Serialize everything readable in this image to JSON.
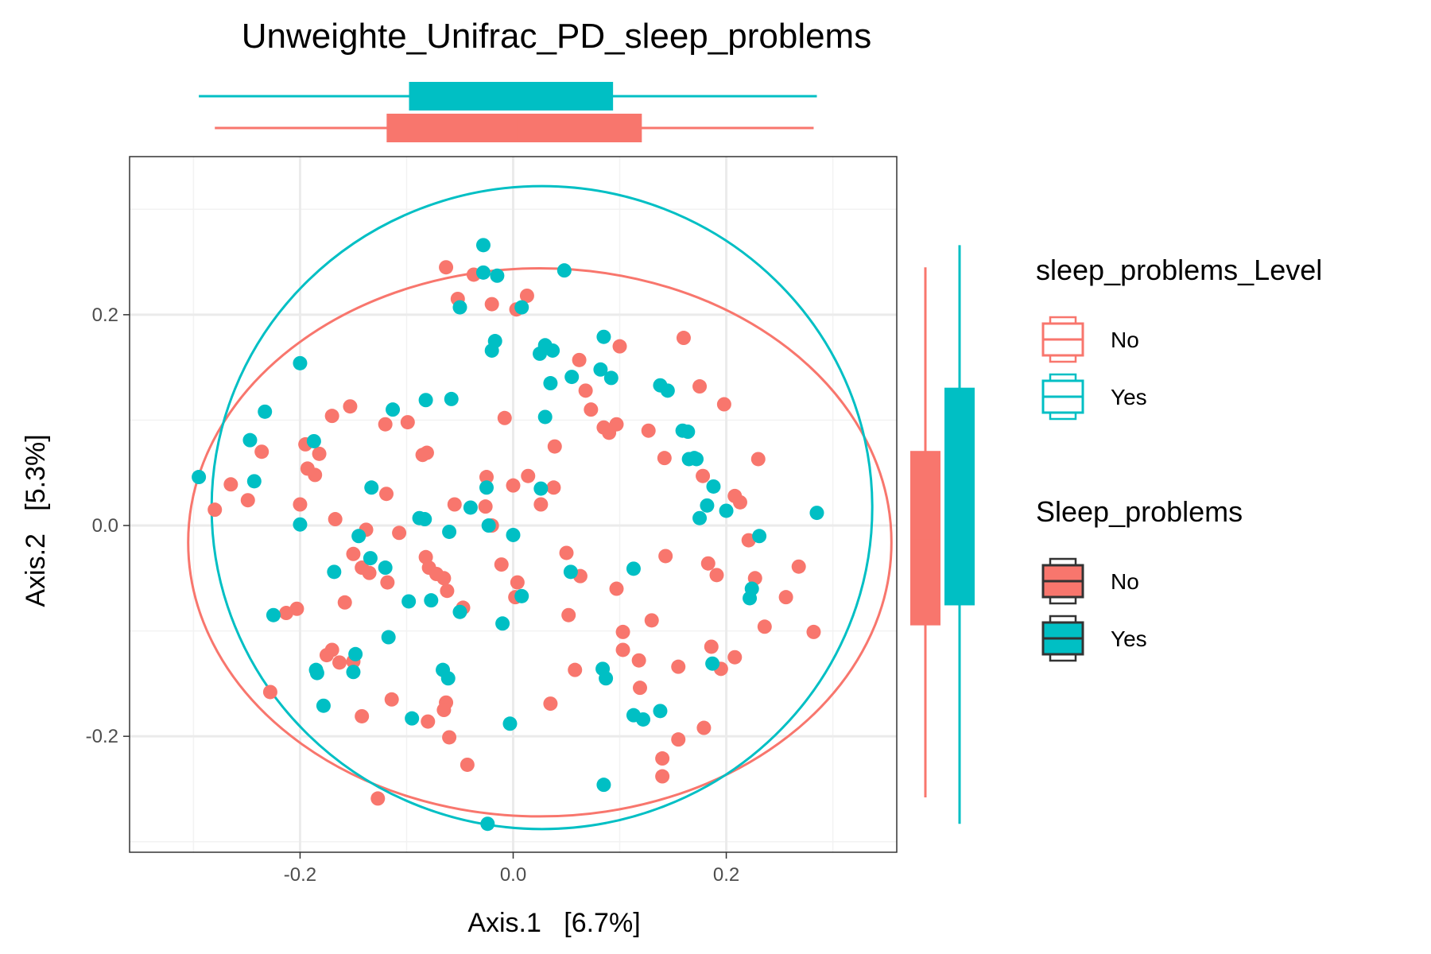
{
  "chart_data": {
    "type": "scatter",
    "title": "Unweighte_Unifrac_PD_sleep_problems",
    "xlabel": "Axis.1   [6.7%]",
    "ylabel": "Axis.2   [5.3%]",
    "xlim": [
      -0.36,
      0.36
    ],
    "ylim": [
      -0.31,
      0.35
    ],
    "x_ticks": [
      -0.2,
      0.0,
      0.2
    ],
    "y_ticks": [
      -0.2,
      0.0,
      0.2
    ],
    "x_tick_labels": [
      "-0.2",
      "0.0",
      "0.2"
    ],
    "y_tick_labels": [
      "-0.2",
      "0.0",
      "0.2"
    ],
    "grid": true,
    "legend_position": "right",
    "colors": {
      "No": "#F8766D",
      "Yes": "#00BFC4"
    },
    "legends": [
      {
        "title": "sleep_problems_Level",
        "style": "outline",
        "entries": [
          "No",
          "Yes"
        ]
      },
      {
        "title": "Sleep_problems",
        "style": "filled",
        "entries": [
          "No",
          "Yes"
        ]
      }
    ],
    "series": [
      {
        "name": "No",
        "color": "#F8766D",
        "ellipse": {
          "cx": 0.025,
          "cy": -0.016,
          "rx": 0.33,
          "ry": 0.26
        },
        "box_x": {
          "min": -0.28,
          "q1": -0.118,
          "median": 0.003,
          "q3": 0.12,
          "max": 0.282
        },
        "box_y": {
          "min": -0.258,
          "q1": -0.094,
          "median": -0.012,
          "q3": 0.07,
          "max": 0.245
        },
        "points": [
          [
            -0.063,
            0.245
          ],
          [
            -0.037,
            0.238
          ],
          [
            -0.052,
            0.215
          ],
          [
            -0.02,
            0.21
          ],
          [
            0.013,
            0.218
          ],
          [
            0.003,
            0.205
          ],
          [
            0.062,
            0.157
          ],
          [
            0.1,
            0.17
          ],
          [
            0.16,
            0.178
          ],
          [
            0.068,
            0.128
          ],
          [
            0.073,
            0.11
          ],
          [
            0.175,
            0.132
          ],
          [
            0.198,
            0.115
          ],
          [
            -0.153,
            0.113
          ],
          [
            -0.17,
            0.104
          ],
          [
            -0.12,
            0.096
          ],
          [
            -0.099,
            0.098
          ],
          [
            -0.008,
            0.102
          ],
          [
            0.085,
            0.093
          ],
          [
            0.09,
            0.088
          ],
          [
            0.097,
            0.096
          ],
          [
            0.127,
            0.09
          ],
          [
            -0.236,
            0.07
          ],
          [
            -0.195,
            0.077
          ],
          [
            -0.182,
            0.068
          ],
          [
            -0.085,
            0.067
          ],
          [
            -0.081,
            0.069
          ],
          [
            0.039,
            0.075
          ],
          [
            0.142,
            0.064
          ],
          [
            0.23,
            0.063
          ],
          [
            -0.193,
            0.054
          ],
          [
            -0.186,
            0.048
          ],
          [
            -0.025,
            0.046
          ],
          [
            0.014,
            0.047
          ],
          [
            0.038,
            0.036
          ],
          [
            0.0,
            0.038
          ],
          [
            0.178,
            0.047
          ],
          [
            -0.265,
            0.039
          ],
          [
            -0.249,
            0.024
          ],
          [
            -0.2,
            0.02
          ],
          [
            -0.119,
            0.03
          ],
          [
            -0.055,
            0.02
          ],
          [
            -0.026,
            0.018
          ],
          [
            0.026,
            0.02
          ],
          [
            0.208,
            0.028
          ],
          [
            0.213,
            0.022
          ],
          [
            -0.28,
            0.015
          ],
          [
            -0.167,
            0.006
          ],
          [
            -0.138,
            -0.004
          ],
          [
            -0.107,
            -0.007
          ],
          [
            -0.02,
            0.0
          ],
          [
            0.221,
            -0.014
          ],
          [
            -0.15,
            -0.027
          ],
          [
            -0.142,
            -0.04
          ],
          [
            -0.135,
            -0.045
          ],
          [
            -0.118,
            -0.054
          ],
          [
            -0.082,
            -0.03
          ],
          [
            -0.079,
            -0.04
          ],
          [
            -0.072,
            -0.046
          ],
          [
            -0.065,
            -0.05
          ],
          [
            -0.062,
            -0.062
          ],
          [
            -0.011,
            -0.037
          ],
          [
            0.05,
            -0.026
          ],
          [
            0.143,
            -0.029
          ],
          [
            0.183,
            -0.036
          ],
          [
            0.268,
            -0.039
          ],
          [
            0.227,
            -0.05
          ],
          [
            0.191,
            -0.047
          ],
          [
            0.063,
            -0.048
          ],
          [
            0.004,
            -0.054
          ],
          [
            0.097,
            -0.06
          ],
          [
            -0.158,
            -0.073
          ],
          [
            -0.203,
            -0.079
          ],
          [
            -0.213,
            -0.083
          ],
          [
            -0.047,
            -0.078
          ],
          [
            0.002,
            -0.068
          ],
          [
            0.052,
            -0.085
          ],
          [
            0.256,
            -0.068
          ],
          [
            0.236,
            -0.096
          ],
          [
            0.282,
            -0.101
          ],
          [
            0.103,
            -0.101
          ],
          [
            0.13,
            -0.09
          ],
          [
            -0.17,
            -0.118
          ],
          [
            -0.175,
            -0.123
          ],
          [
            -0.15,
            -0.129
          ],
          [
            -0.163,
            -0.13
          ],
          [
            0.103,
            -0.118
          ],
          [
            0.118,
            -0.128
          ],
          [
            0.186,
            -0.115
          ],
          [
            0.208,
            -0.125
          ],
          [
            0.195,
            -0.136
          ],
          [
            -0.228,
            -0.158
          ],
          [
            -0.114,
            -0.165
          ],
          [
            -0.063,
            -0.168
          ],
          [
            -0.065,
            -0.175
          ],
          [
            0.058,
            -0.137
          ],
          [
            0.155,
            -0.134
          ],
          [
            0.119,
            -0.154
          ],
          [
            -0.142,
            -0.181
          ],
          [
            -0.08,
            -0.186
          ],
          [
            -0.06,
            -0.201
          ],
          [
            -0.043,
            -0.227
          ],
          [
            0.035,
            -0.169
          ],
          [
            0.155,
            -0.203
          ],
          [
            0.179,
            -0.192
          ],
          [
            0.14,
            -0.221
          ],
          [
            0.14,
            -0.238
          ],
          [
            -0.127,
            -0.259
          ]
        ]
      },
      {
        "name": "Yes",
        "color": "#00BFC4",
        "ellipse": {
          "cx": 0.027,
          "cy": 0.017,
          "rx": 0.31,
          "ry": 0.305
        },
        "box_x": {
          "min": -0.295,
          "q1": -0.097,
          "median": -0.004,
          "q3": 0.093,
          "max": 0.285
        },
        "box_y": {
          "min": -0.283,
          "q1": -0.075,
          "median": 0.0,
          "q3": 0.13,
          "max": 0.266
        },
        "points": [
          [
            -0.028,
            0.266
          ],
          [
            -0.028,
            0.24
          ],
          [
            -0.015,
            0.237
          ],
          [
            0.048,
            0.242
          ],
          [
            -0.05,
            0.207
          ],
          [
            0.008,
            0.207
          ],
          [
            -0.017,
            0.175
          ],
          [
            -0.02,
            0.166
          ],
          [
            0.03,
            0.171
          ],
          [
            0.025,
            0.163
          ],
          [
            0.037,
            0.166
          ],
          [
            0.085,
            0.179
          ],
          [
            0.082,
            0.148
          ],
          [
            0.092,
            0.14
          ],
          [
            0.035,
            0.135
          ],
          [
            0.055,
            0.141
          ],
          [
            0.138,
            0.133
          ],
          [
            0.145,
            0.128
          ],
          [
            -0.2,
            0.154
          ],
          [
            -0.233,
            0.108
          ],
          [
            -0.113,
            0.11
          ],
          [
            -0.082,
            0.119
          ],
          [
            -0.058,
            0.12
          ],
          [
            0.03,
            0.103
          ],
          [
            0.159,
            0.09
          ],
          [
            0.164,
            0.089
          ],
          [
            -0.247,
            0.081
          ],
          [
            -0.187,
            0.08
          ],
          [
            0.165,
            0.063
          ],
          [
            0.17,
            0.064
          ],
          [
            0.172,
            0.063
          ],
          [
            -0.243,
            0.042
          ],
          [
            -0.295,
            0.046
          ],
          [
            -0.133,
            0.036
          ],
          [
            -0.025,
            0.036
          ],
          [
            0.026,
            0.035
          ],
          [
            0.188,
            0.037
          ],
          [
            0.182,
            0.019
          ],
          [
            0.175,
            0.007
          ],
          [
            0.2,
            0.014
          ],
          [
            0.285,
            0.012
          ],
          [
            -0.04,
            0.017
          ],
          [
            -0.2,
            0.001
          ],
          [
            -0.088,
            0.007
          ],
          [
            -0.083,
            0.006
          ],
          [
            -0.06,
            -0.006
          ],
          [
            -0.023,
            0.0
          ],
          [
            0.0,
            -0.009
          ],
          [
            0.231,
            -0.01
          ],
          [
            -0.145,
            -0.01
          ],
          [
            -0.134,
            -0.031
          ],
          [
            -0.168,
            -0.044
          ],
          [
            -0.12,
            -0.04
          ],
          [
            0.054,
            -0.044
          ],
          [
            0.113,
            -0.041
          ],
          [
            0.224,
            -0.06
          ],
          [
            0.222,
            -0.069
          ],
          [
            -0.098,
            -0.072
          ],
          [
            -0.077,
            -0.071
          ],
          [
            -0.05,
            -0.082
          ],
          [
            0.008,
            -0.067
          ],
          [
            -0.225,
            -0.085
          ],
          [
            -0.117,
            -0.106
          ],
          [
            -0.01,
            -0.093
          ],
          [
            -0.148,
            -0.122
          ],
          [
            -0.185,
            -0.137
          ],
          [
            -0.184,
            -0.14
          ],
          [
            -0.066,
            -0.137
          ],
          [
            -0.061,
            -0.145
          ],
          [
            -0.15,
            -0.139
          ],
          [
            0.084,
            -0.136
          ],
          [
            0.087,
            -0.145
          ],
          [
            0.187,
            -0.131
          ],
          [
            -0.178,
            -0.171
          ],
          [
            -0.095,
            -0.183
          ],
          [
            0.113,
            -0.18
          ],
          [
            0.122,
            -0.184
          ],
          [
            0.138,
            -0.176
          ],
          [
            -0.003,
            -0.188
          ],
          [
            0.085,
            -0.246
          ],
          [
            -0.024,
            -0.283
          ]
        ]
      }
    ]
  }
}
